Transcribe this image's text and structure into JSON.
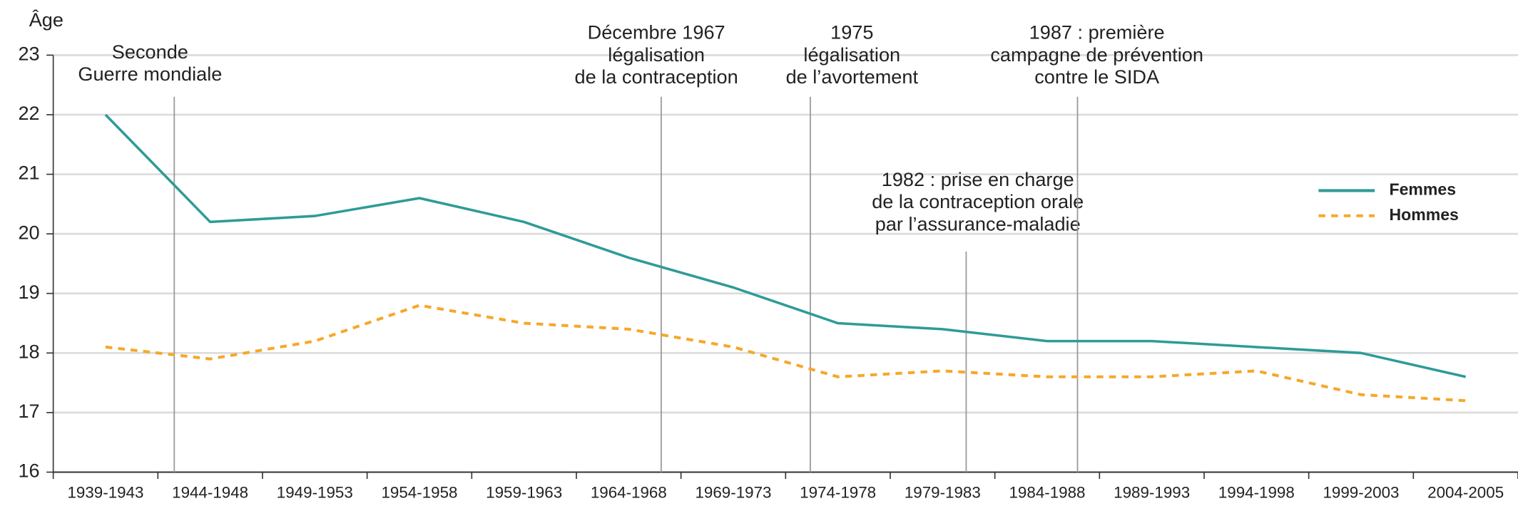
{
  "chart_data": {
    "type": "line",
    "y_label": "Âge",
    "categories": [
      "1939-1943",
      "1944-1948",
      "1949-1953",
      "1954-1958",
      "1959-1963",
      "1964-1968",
      "1969-1973",
      "1974-1978",
      "1979-1983",
      "1984-1988",
      "1989-1993",
      "1994-1998",
      "1999-2003",
      "2004-2005"
    ],
    "series": [
      {
        "name": "Femmes",
        "color": "#2e9b97",
        "dash": false,
        "values": [
          22.0,
          20.2,
          20.3,
          20.6,
          20.2,
          19.6,
          19.1,
          18.5,
          18.4,
          18.2,
          18.2,
          18.1,
          18.0,
          17.6
        ]
      },
      {
        "name": "Hommes",
        "color": "#f5a82a",
        "dash": true,
        "values": [
          18.1,
          17.9,
          18.2,
          18.8,
          18.5,
          18.4,
          18.1,
          17.6,
          17.7,
          17.6,
          17.6,
          17.7,
          17.3,
          17.2
        ]
      }
    ],
    "ylim": [
      16,
      23
    ],
    "yticks": [
      16,
      17,
      18,
      19,
      20,
      21,
      22,
      23
    ],
    "grid": true,
    "annotations": [
      {
        "lines": [
          "Seconde",
          "Guerre mondiale"
        ]
      },
      {
        "lines": [
          "Décembre 1967",
          "légalisation",
          "de la contraception"
        ]
      },
      {
        "lines": [
          "1975",
          "légalisation",
          "de l’avortement"
        ]
      },
      {
        "lines": [
          "1982 : prise en charge",
          "de la contraception orale",
          "par l’assurance-maladie"
        ]
      },
      {
        "lines": [
          "1987 : première",
          "campagne de prévention",
          "contre le SIDA"
        ]
      }
    ]
  }
}
